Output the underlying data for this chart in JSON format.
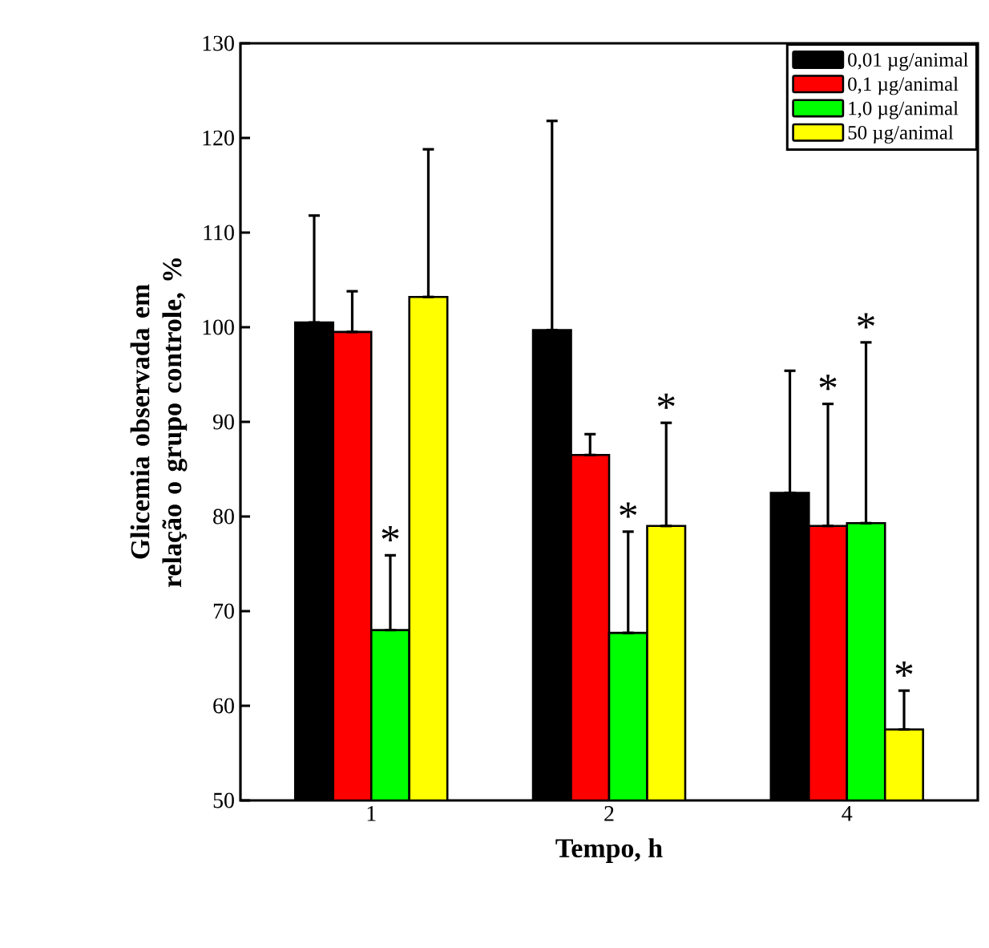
{
  "chart_data": {
    "type": "bar",
    "xlabel": "Tempo, h",
    "ylabel": "Glicemia observada em relação o grupo controle, %",
    "categories": [
      "1",
      "2",
      "4"
    ],
    "series": [
      {
        "name": "0,01 µg/animal",
        "color": "#000000",
        "values": [
          100.5,
          99.7,
          82.5
        ],
        "errors": [
          [
            100.5,
            111.8
          ],
          [
            99.7,
            121.8
          ],
          [
            82.5,
            95.4
          ]
        ]
      },
      {
        "name": "0,1 µg/animal",
        "color": "#ff0000",
        "values": [
          99.5,
          86.5,
          79.0
        ],
        "errors": [
          [
            99.5,
            103.8
          ],
          [
            86.5,
            88.7
          ],
          [
            79.0,
            91.9
          ]
        ]
      },
      {
        "name": "1,0 µg/animal",
        "color": "#00ff00",
        "values": [
          68.0,
          67.7,
          79.3
        ],
        "errors": [
          [
            68.0,
            75.9
          ],
          [
            67.7,
            78.4
          ],
          [
            79.3,
            98.4
          ]
        ]
      },
      {
        "name": "50 µg/animal",
        "color": "#ffff00",
        "values": [
          103.2,
          79.0,
          57.5
        ],
        "errors": [
          [
            103.2,
            118.8
          ],
          [
            79.0,
            89.9
          ],
          [
            57.5,
            61.6
          ]
        ]
      }
    ],
    "annotations": [
      {
        "text": "*",
        "y": 75.9
      },
      {
        "text": "*",
        "y": 78.4
      },
      {
        "text": "*",
        "y": 89.9
      },
      {
        "text": "*",
        "y": 91.9
      },
      {
        "text": "*",
        "y": 98.4
      },
      {
        "text": "*",
        "y": 61.6
      }
    ],
    "ylim": [
      50,
      130
    ],
    "yticks": [
      50,
      60,
      70,
      80,
      90,
      100,
      110,
      120,
      130
    ],
    "grid": false,
    "legend": "top right"
  }
}
